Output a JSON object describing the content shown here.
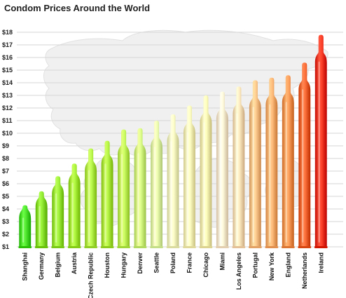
{
  "chart_data": {
    "type": "bar",
    "title": "Condom Prices Around the World",
    "xlabel": "",
    "ylabel": "",
    "ylim": [
      1,
      18
    ],
    "yticks": [
      "$1",
      "$2",
      "$3",
      "$4",
      "$5",
      "$6",
      "$7",
      "$8",
      "$9",
      "$10",
      "$11",
      "$12",
      "$13",
      "$14",
      "$15",
      "$16",
      "$17",
      "$18"
    ],
    "categories": [
      "Shanghai",
      "Germany",
      "Belgium",
      "Austria",
      "Czech Republic",
      "Houston",
      "Hungary",
      "Denver",
      "Seattle",
      "Poland",
      "France",
      "Chicago",
      "Miami",
      "Los Angeles",
      "Portugal",
      "New York",
      "England",
      "Netherlands",
      "Ireland"
    ],
    "values": [
      4.3,
      5.4,
      6.6,
      7.6,
      8.8,
      9.4,
      10.3,
      10.4,
      11.0,
      11.5,
      12.2,
      13.0,
      13.3,
      13.7,
      14.2,
      14.4,
      14.6,
      15.6,
      17.8
    ],
    "colors": [
      "#3fd31b",
      "#7fd61f",
      "#8edd2a",
      "#99e02a",
      "#a6e33a",
      "#a2df33",
      "#b5ea4c",
      "#c6ee74",
      "#d8f29c",
      "#eef0b3",
      "#f4ecac",
      "#f1e7a5",
      "#f7e2c4",
      "#f8d5ab",
      "#f6b579",
      "#f5a463",
      "#f08a48",
      "#ea5a25",
      "#e62a12"
    ],
    "grid": true,
    "legend": "none",
    "background": "faint world map"
  }
}
